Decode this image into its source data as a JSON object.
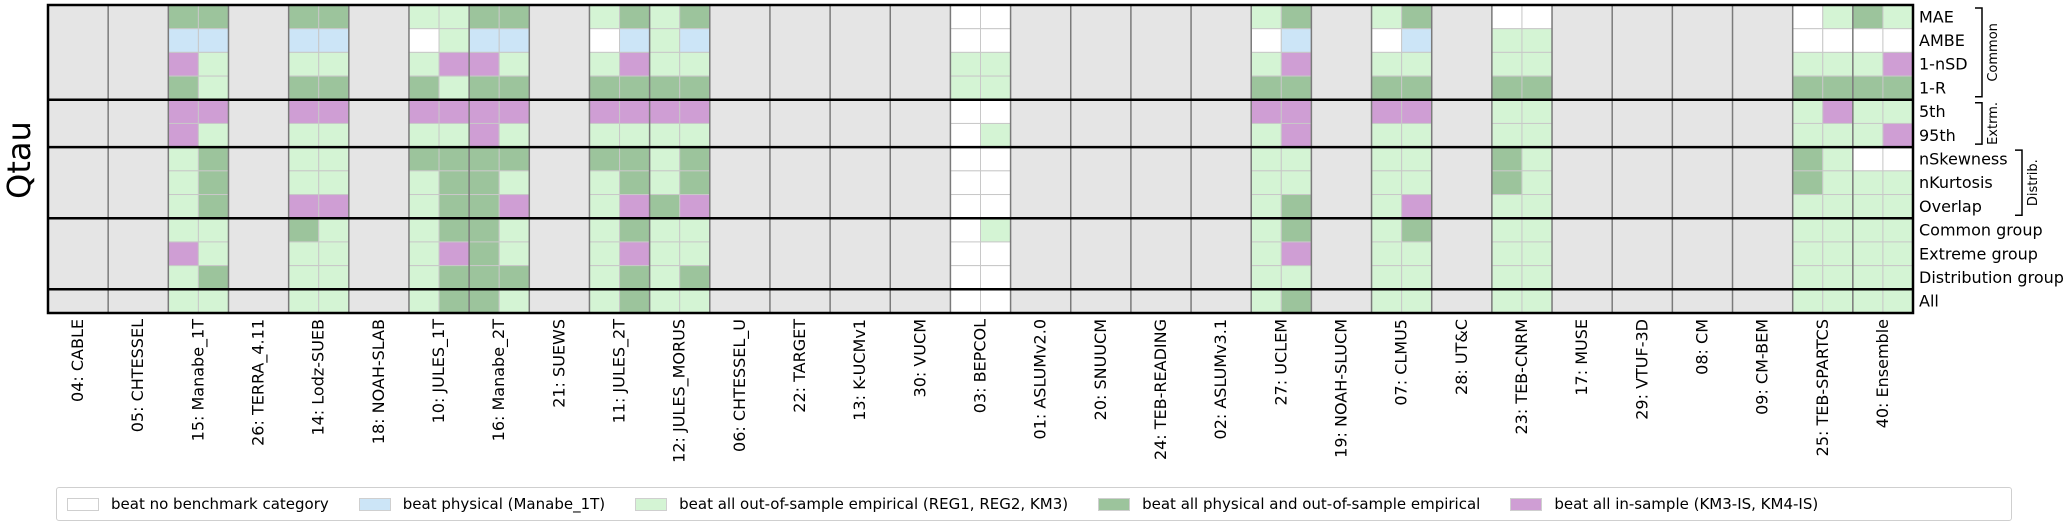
{
  "figure": {
    "y_title": "Qtau"
  },
  "colors": {
    "none": "#ffffff",
    "phys": "#cce5f7",
    "emp": "#d4f4d4",
    "both": "#9cc49c",
    "insample": "#cf9ed4",
    "outside": "#e5e5e5"
  },
  "chart_data": {
    "type": "heatmap",
    "models": [
      "04: CABLE",
      "05: CHTESSEL",
      "15: Manabe_1T",
      "26: TERRA_4.11",
      "14: Lodz-SUEB",
      "18: NOAH-SLAB",
      "10: JULES_1T",
      "16: Manabe_2T",
      "21: SUEWS",
      "11: JULES_2T",
      "12: JULES_MORUS",
      "06: CHTESSEL_U",
      "22: TARGET",
      "13: K-UCMv1",
      "30: VUCM",
      "03: BEPCOL",
      "01: ASLUMv2.0",
      "20: SNUUCM",
      "24: TEB-READING",
      "02: ASLUMv3.1",
      "27: UCLEM",
      "19: NOAH-SLUCM",
      "07: CLMU5",
      "28: UT&C",
      "23: TEB-CNRM",
      "17: MUSE",
      "29: VTUF-3D",
      "08: CM",
      "09: CM-BEM",
      "25: TEB-SPARTCS",
      "40: Ensemble"
    ],
    "metrics": [
      "MAE",
      "AMBE",
      "1-nSD",
      "1-R",
      "5th",
      "95th",
      "nSkewness",
      "nKurtosis",
      "Overlap",
      "Common group",
      "Extreme group",
      "Distribution group",
      "All"
    ],
    "groups": [
      {
        "label": "Common",
        "first_row": 0,
        "last_row": 3
      },
      {
        "label": "Extrm.",
        "first_row": 4,
        "last_row": 5
      },
      {
        "label": "Distrib.",
        "first_row": 6,
        "last_row": 8
      }
    ],
    "section_breaks_after_row": [
      3,
      5,
      8,
      11
    ],
    "categories_legend": [
      {
        "key": "N",
        "label": "beat no benchmark category"
      },
      {
        "key": "P",
        "label": "beat physical (Manabe_1T)"
      },
      {
        "key": "E",
        "label": "beat all out-of-sample empirical (REG1, REG2, KM3)"
      },
      {
        "key": "B",
        "label": "beat all physical and out-of-sample empirical"
      },
      {
        "key": "I",
        "label": "beat all in-sample (KM3-IS, KM4-IS)"
      }
    ],
    "cells": {
      "15: Manabe_1T": [
        [
          "B",
          "B"
        ],
        [
          "P",
          "P"
        ],
        [
          "I",
          "E"
        ],
        [
          "B",
          "E"
        ],
        [
          "I",
          "I"
        ],
        [
          "I",
          "E"
        ],
        [
          "E",
          "B"
        ],
        [
          "E",
          "B"
        ],
        [
          "E",
          "B"
        ],
        [
          "E",
          "E"
        ],
        [
          "I",
          "E"
        ],
        [
          "E",
          "B"
        ],
        [
          "E",
          "E"
        ]
      ],
      "14: Lodz-SUEB": [
        [
          "B",
          "B"
        ],
        [
          "P",
          "P"
        ],
        [
          "E",
          "E"
        ],
        [
          "B",
          "B"
        ],
        [
          "I",
          "I"
        ],
        [
          "E",
          "E"
        ],
        [
          "E",
          "E"
        ],
        [
          "E",
          "E"
        ],
        [
          "I",
          "I"
        ],
        [
          "B",
          "E"
        ],
        [
          "E",
          "E"
        ],
        [
          "E",
          "E"
        ],
        [
          "E",
          "E"
        ]
      ],
      "10: JULES_1T": [
        [
          "E",
          "E"
        ],
        [
          "N",
          "E"
        ],
        [
          "E",
          "I"
        ],
        [
          "B",
          "E"
        ],
        [
          "I",
          "I"
        ],
        [
          "E",
          "E"
        ],
        [
          "B",
          "B"
        ],
        [
          "E",
          "B"
        ],
        [
          "E",
          "B"
        ],
        [
          "E",
          "B"
        ],
        [
          "E",
          "I"
        ],
        [
          "E",
          "B"
        ],
        [
          "E",
          "B"
        ]
      ],
      "16: Manabe_2T": [
        [
          "B",
          "B"
        ],
        [
          "P",
          "P"
        ],
        [
          "I",
          "E"
        ],
        [
          "B",
          "B"
        ],
        [
          "I",
          "I"
        ],
        [
          "I",
          "E"
        ],
        [
          "B",
          "B"
        ],
        [
          "B",
          "E"
        ],
        [
          "B",
          "I"
        ],
        [
          "B",
          "E"
        ],
        [
          "B",
          "E"
        ],
        [
          "B",
          "B"
        ],
        [
          "B",
          "E"
        ]
      ],
      "11: JULES_2T": [
        [
          "E",
          "B"
        ],
        [
          "N",
          "P"
        ],
        [
          "E",
          "I"
        ],
        [
          "B",
          "B"
        ],
        [
          "I",
          "I"
        ],
        [
          "E",
          "E"
        ],
        [
          "B",
          "B"
        ],
        [
          "E",
          "B"
        ],
        [
          "E",
          "I"
        ],
        [
          "E",
          "B"
        ],
        [
          "E",
          "I"
        ],
        [
          "E",
          "B"
        ],
        [
          "E",
          "B"
        ]
      ],
      "12: JULES_MORUS": [
        [
          "E",
          "B"
        ],
        [
          "E",
          "P"
        ],
        [
          "E",
          "E"
        ],
        [
          "B",
          "B"
        ],
        [
          "I",
          "I"
        ],
        [
          "E",
          "E"
        ],
        [
          "E",
          "B"
        ],
        [
          "E",
          "B"
        ],
        [
          "B",
          "I"
        ],
        [
          "E",
          "E"
        ],
        [
          "E",
          "E"
        ],
        [
          "E",
          "B"
        ],
        [
          "E",
          "E"
        ]
      ],
      "03: BEPCOL": [
        [
          "N",
          "N"
        ],
        [
          "N",
          "N"
        ],
        [
          "E",
          "E"
        ],
        [
          "E",
          "E"
        ],
        [
          "N",
          "N"
        ],
        [
          "N",
          "E"
        ],
        [
          "N",
          "N"
        ],
        [
          "N",
          "N"
        ],
        [
          "N",
          "N"
        ],
        [
          "N",
          "E"
        ],
        [
          "N",
          "N"
        ],
        [
          "N",
          "N"
        ],
        [
          "N",
          "N"
        ]
      ],
      "27: UCLEM": [
        [
          "E",
          "B"
        ],
        [
          "N",
          "P"
        ],
        [
          "E",
          "I"
        ],
        [
          "B",
          "B"
        ],
        [
          "I",
          "I"
        ],
        [
          "E",
          "I"
        ],
        [
          "E",
          "E"
        ],
        [
          "E",
          "E"
        ],
        [
          "E",
          "B"
        ],
        [
          "E",
          "B"
        ],
        [
          "E",
          "I"
        ],
        [
          "E",
          "E"
        ],
        [
          "E",
          "B"
        ]
      ],
      "07: CLMU5": [
        [
          "E",
          "B"
        ],
        [
          "N",
          "P"
        ],
        [
          "E",
          "E"
        ],
        [
          "B",
          "B"
        ],
        [
          "I",
          "I"
        ],
        [
          "E",
          "E"
        ],
        [
          "E",
          "E"
        ],
        [
          "E",
          "E"
        ],
        [
          "E",
          "I"
        ],
        [
          "E",
          "B"
        ],
        [
          "E",
          "E"
        ],
        [
          "E",
          "E"
        ],
        [
          "E",
          "E"
        ]
      ],
      "23: TEB-CNRM": [
        [
          "N",
          "N"
        ],
        [
          "E",
          "E"
        ],
        [
          "E",
          "E"
        ],
        [
          "B",
          "B"
        ],
        [
          "E",
          "E"
        ],
        [
          "E",
          "E"
        ],
        [
          "B",
          "E"
        ],
        [
          "B",
          "E"
        ],
        [
          "E",
          "E"
        ],
        [
          "E",
          "E"
        ],
        [
          "E",
          "E"
        ],
        [
          "E",
          "E"
        ],
        [
          "E",
          "E"
        ]
      ],
      "25: TEB-SPARTCS": [
        [
          "N",
          "E"
        ],
        [
          "N",
          "N"
        ],
        [
          "E",
          "E"
        ],
        [
          "B",
          "B"
        ],
        [
          "E",
          "I"
        ],
        [
          "E",
          "E"
        ],
        [
          "B",
          "E"
        ],
        [
          "B",
          "E"
        ],
        [
          "E",
          "E"
        ],
        [
          "E",
          "E"
        ],
        [
          "E",
          "E"
        ],
        [
          "E",
          "E"
        ],
        [
          "E",
          "E"
        ]
      ],
      "40: Ensemble": [
        [
          "B",
          "E"
        ],
        [
          "N",
          "N"
        ],
        [
          "E",
          "I"
        ],
        [
          "B",
          "B"
        ],
        [
          "E",
          "E"
        ],
        [
          "E",
          "I"
        ],
        [
          "N",
          "N"
        ],
        [
          "E",
          "E"
        ],
        [
          "E",
          "E"
        ],
        [
          "E",
          "E"
        ],
        [
          "E",
          "E"
        ],
        [
          "E",
          "E"
        ],
        [
          "E",
          "E"
        ]
      ]
    }
  }
}
